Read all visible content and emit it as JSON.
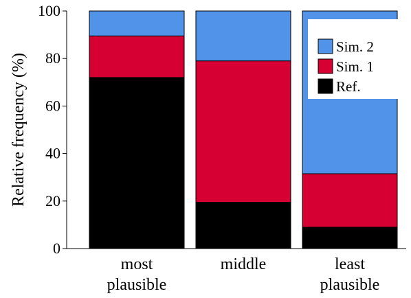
{
  "chart_data": {
    "type": "bar",
    "stacked": true,
    "categories": [
      [
        "most",
        "plausible"
      ],
      [
        "middle"
      ],
      [
        "least",
        "plausible"
      ]
    ],
    "series": [
      {
        "name": "Ref.",
        "color": "#000000",
        "values": [
          72,
          19.5,
          9
        ]
      },
      {
        "name": "Sim. 1",
        "color": "#d60032",
        "values": [
          17.5,
          59.5,
          22.5
        ]
      },
      {
        "name": "Sim. 2",
        "color": "#5193e8",
        "values": [
          10.5,
          21,
          68.5
        ]
      }
    ],
    "title": "",
    "xlabel": "",
    "ylabel": "Relative frequency (%)",
    "ylim": [
      0,
      100
    ],
    "yticks": [
      "0",
      "20",
      "40",
      "60",
      "80",
      "100"
    ],
    "grid": false,
    "legend": {
      "position": "top-right",
      "order": [
        "Sim. 2",
        "Sim. 1",
        "Ref."
      ]
    }
  }
}
